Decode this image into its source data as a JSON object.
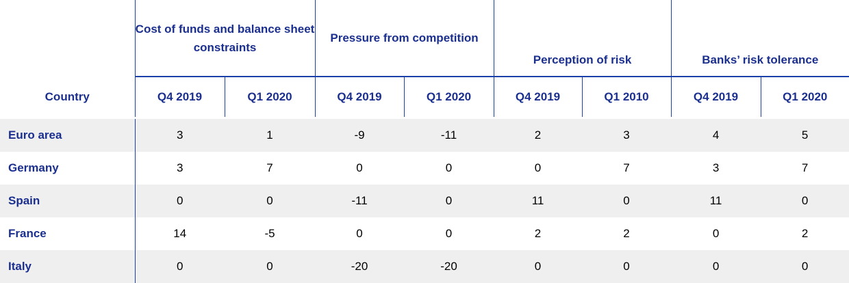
{
  "header": {
    "country": "Country",
    "groups": [
      {
        "title": "Cost of funds and balance sheet constraints",
        "subheaders": [
          "Q4 2019",
          "Q1 2020"
        ]
      },
      {
        "title": "Pressure from competition",
        "subheaders": [
          "Q4 2019",
          "Q1 2020"
        ]
      },
      {
        "title": "Perception of risk",
        "subheaders": [
          "Q4 2019",
          "Q1 2010"
        ]
      },
      {
        "title": "Banks’ risk tolerance",
        "subheaders": [
          "Q4 2019",
          "Q1 2020"
        ]
      }
    ]
  },
  "table": {
    "rows": [
      {
        "country": "Euro area",
        "values": [
          3,
          1,
          -9,
          -11,
          2,
          3,
          4,
          5
        ]
      },
      {
        "country": "Germany",
        "values": [
          3,
          7,
          0,
          0,
          0,
          7,
          3,
          7
        ]
      },
      {
        "country": "Spain",
        "values": [
          0,
          0,
          -11,
          0,
          11,
          0,
          11,
          0
        ]
      },
      {
        "country": "France",
        "values": [
          14,
          -5,
          0,
          0,
          2,
          2,
          0,
          2
        ]
      },
      {
        "country": "Italy",
        "values": [
          0,
          0,
          -20,
          -20,
          0,
          0,
          0,
          0
        ]
      }
    ]
  }
}
